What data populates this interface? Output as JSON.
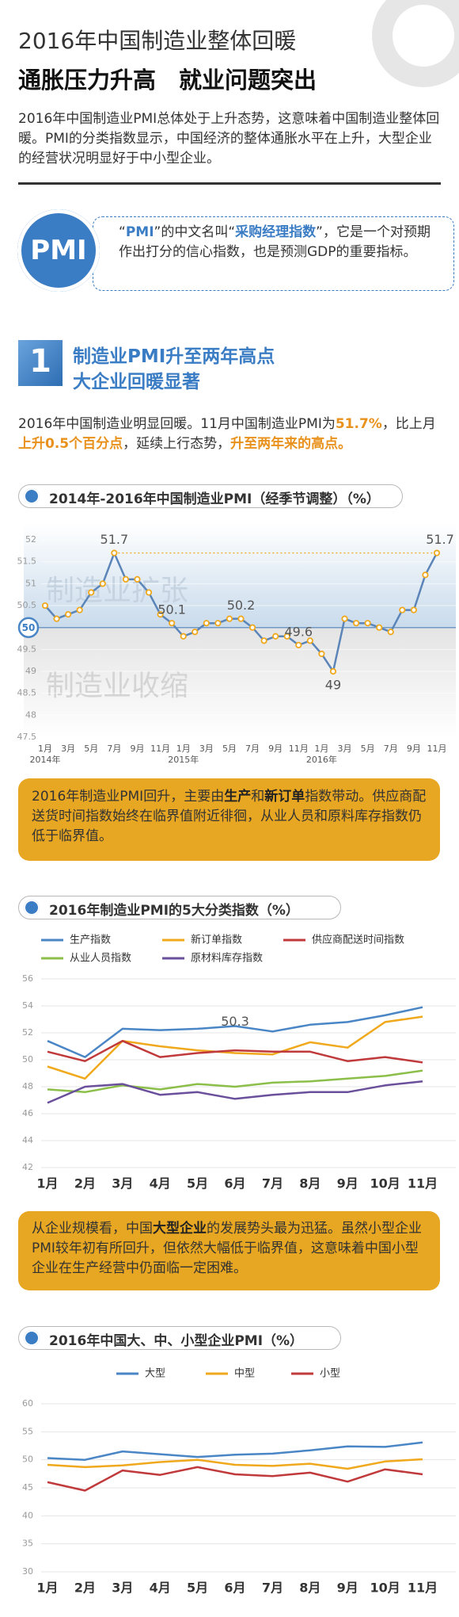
{
  "title": "2016年中国制造业整体回暖",
  "subtitle": "通胀压力升高　就业问题突出",
  "intro": "2016年中国制造业PMI总体处于上升态势，这意味着中国制造业整体回暖。PMI的分类指数显示，中国经济的整体通胀水平在上升，大型企业的经营状况明显好于中小型企业。",
  "pmi_badge": "PMI",
  "pmi_note": [
    "“",
    "PMI",
    "”的中文名叫“",
    "采购经理指数",
    "”，它是一个对预期作出打分的信心指数，也是预测GDP的重要指标。"
  ],
  "section": {
    "number": "1",
    "title": [
      "制造业PMI升至两年高点",
      "大企业回暖显著"
    ],
    "text": [
      "2016年中国制造业明显回暖。11月中国制造业PMI为",
      "51.7%",
      "，比上月",
      "上升0.5个百分点",
      "，延续上行态势，",
      "升至两年来的高点。"
    ]
  },
  "callouts": [
    [
      "2016年制造业PMI回升，主要由",
      "生产",
      "和",
      "新订单",
      "指数带动。供应商配送货时间指数始终在临界值附近徘徊，从业人员和原料库存指数仍低于临界值。"
    ],
    [
      "从企业规模看，中国",
      "大型企业",
      "的发展势头最为迅猛。虽然小型企业PMI较年初有所回升，但依然大幅低于临界值，这意味着中国小型企业在生产经营中仍面临一定困难。"
    ]
  ],
  "chart_data": [
    {
      "type": "line",
      "title": "2014年-2016年中国制造业PMI（经季节调整）（%）",
      "categories": [
        "1月",
        null,
        "3月",
        null,
        "5月",
        null,
        "7月",
        null,
        "9月",
        null,
        "11月",
        null,
        "1月",
        null,
        "3月",
        null,
        "5月",
        null,
        "7月",
        null,
        "9月",
        null,
        "11月",
        null,
        "1月",
        null,
        "3月",
        null,
        "5月",
        null,
        "7月",
        null,
        "9月",
        null,
        "11月"
      ],
      "year_labels": [
        "2014年",
        null,
        null,
        null,
        null,
        null,
        null,
        null,
        null,
        null,
        null,
        null,
        "2015年",
        null,
        null,
        null,
        null,
        null,
        null,
        null,
        null,
        null,
        null,
        null,
        "2016年",
        null,
        null,
        null,
        null,
        null,
        null,
        null,
        null,
        null,
        null
      ],
      "values": [
        50.5,
        50.2,
        50.3,
        50.4,
        50.8,
        51.0,
        51.7,
        51.1,
        51.1,
        50.8,
        50.3,
        50.1,
        49.8,
        49.9,
        50.1,
        50.1,
        50.2,
        50.2,
        50.0,
        49.7,
        49.8,
        49.8,
        49.6,
        49.7,
        49.4,
        49.0,
        50.2,
        50.1,
        50.1,
        50.0,
        49.9,
        50.4,
        50.4,
        51.2,
        51.7
      ],
      "value_labels": [
        null,
        null,
        null,
        null,
        null,
        null,
        "51.7",
        null,
        null,
        null,
        null,
        "50.1",
        null,
        null,
        null,
        null,
        null,
        "50.2",
        null,
        null,
        null,
        null,
        "49.6",
        null,
        null,
        "49",
        null,
        null,
        null,
        null,
        null,
        null,
        null,
        null,
        "51.7"
      ],
      "ylim": [
        47.5,
        52.2
      ],
      "yticks": [
        47.5,
        48,
        48.5,
        49,
        49.5,
        50,
        50.5,
        51,
        51.5,
        52
      ],
      "reference_line": 50,
      "zones": [
        "制造业扩张",
        "制造业收缩"
      ],
      "color": "#5b85b8",
      "marker_color": "#f0a81c"
    },
    {
      "type": "line",
      "title": "2016年制造业PMI的5大分类指数（%）",
      "categories": [
        "1月",
        "2月",
        "3月",
        "4月",
        "5月",
        "6月",
        "7月",
        "8月",
        "9月",
        "10月",
        "11月"
      ],
      "series": [
        {
          "name": "生产指数",
          "color": "#4a86c5",
          "values": [
            51.4,
            50.2,
            52.3,
            52.2,
            52.3,
            52.5,
            52.1,
            52.6,
            52.8,
            53.3,
            53.9
          ]
        },
        {
          "name": "新订单指数",
          "color": "#f0a81c",
          "values": [
            49.5,
            48.6,
            51.4,
            51.0,
            50.7,
            50.5,
            50.4,
            51.3,
            50.9,
            52.8,
            53.2
          ]
        },
        {
          "name": "供应商配送时间指数",
          "color": "#c0393b",
          "values": [
            50.6,
            49.9,
            51.4,
            50.2,
            50.5,
            50.7,
            50.6,
            50.6,
            49.9,
            50.2,
            49.8
          ]
        },
        {
          "name": "从业人员指数",
          "color": "#8cbf4a",
          "values": [
            47.8,
            47.6,
            48.1,
            47.8,
            48.2,
            48.0,
            48.3,
            48.4,
            48.6,
            48.8,
            49.2
          ]
        },
        {
          "name": "原材料库存指数",
          "color": "#6a4f9b",
          "values": [
            46.8,
            48.0,
            48.2,
            47.4,
            47.6,
            47.1,
            47.4,
            47.6,
            47.6,
            48.1,
            48.4
          ]
        }
      ],
      "annotation": {
        "label": "50.3",
        "category": "6月",
        "y": 52.8
      },
      "ylim": [
        42,
        56
      ],
      "yticks": [
        42,
        44,
        46,
        48,
        50,
        52,
        54,
        56
      ],
      "grid": true
    },
    {
      "type": "line",
      "title": "2016年中国大、中、小型企业PMI（%）",
      "categories": [
        "1月",
        "2月",
        "3月",
        "4月",
        "5月",
        "6月",
        "7月",
        "8月",
        "9月",
        "10月",
        "11月"
      ],
      "series": [
        {
          "name": "大型",
          "color": "#4a86c5",
          "values": [
            50.3,
            50.0,
            51.5,
            51.0,
            50.5,
            50.9,
            51.1,
            51.7,
            52.4,
            52.3,
            53.1
          ]
        },
        {
          "name": "中型",
          "color": "#f0a81c",
          "values": [
            49.1,
            48.7,
            49.0,
            49.6,
            50.0,
            49.1,
            48.9,
            49.3,
            48.4,
            49.7,
            50.1
          ]
        },
        {
          "name": "小型",
          "color": "#c0393b",
          "values": [
            46.0,
            44.5,
            48.1,
            47.3,
            48.7,
            47.4,
            47.1,
            47.7,
            46.1,
            48.3,
            47.4
          ]
        }
      ],
      "ylim": [
        30,
        60
      ],
      "yticks": [
        30,
        35,
        40,
        45,
        50,
        55,
        60
      ],
      "grid": true
    }
  ]
}
